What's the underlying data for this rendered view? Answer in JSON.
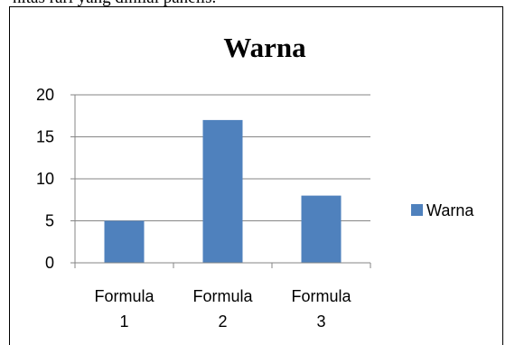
{
  "page": {
    "cut_text": "hitas rari yang dinilai panelis."
  },
  "chart_data": {
    "type": "bar",
    "title": "Warna",
    "categories": [
      [
        "Formula",
        "1"
      ],
      [
        "Formula",
        "2"
      ],
      [
        "Formula",
        "3"
      ]
    ],
    "series": [
      {
        "name": "Warna",
        "values": [
          5,
          17,
          8
        ],
        "color": "#4F81BD"
      }
    ],
    "ylim": [
      0,
      20
    ],
    "yticks": [
      0,
      5,
      10,
      15,
      20
    ],
    "grid": true,
    "gridline_color": "#868686",
    "legend_position": "right"
  }
}
